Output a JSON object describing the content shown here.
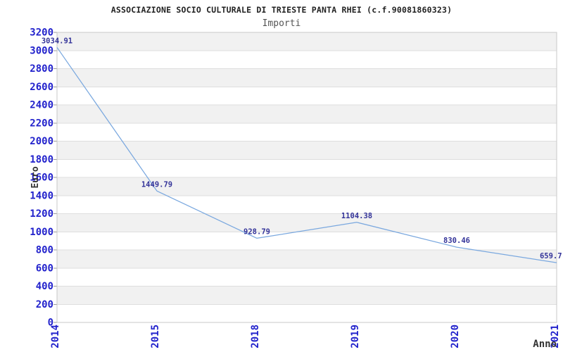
{
  "chart_data": {
    "type": "line",
    "title": "ASSOCIAZIONE SOCIO CULTURALE DI TRIESTE PANTA RHEI (c.f.90081860323)",
    "subtitle": "Importi",
    "xlabel": "Anno",
    "ylabel": "Euro",
    "categories": [
      "2014",
      "2015",
      "2018",
      "2019",
      "2020",
      "2021"
    ],
    "series": [
      {
        "name": "Importi",
        "values": [
          3034.91,
          1449.79,
          928.79,
          1104.38,
          830.46,
          659.7
        ]
      }
    ],
    "point_labels": [
      "3034.91",
      "1449.79",
      "928.79",
      "1104.38",
      "830.46",
      "659.7"
    ],
    "ylim": [
      0,
      3200
    ],
    "ytick_step": 200,
    "grid": "horizontal-bands-alternating",
    "legend": "none",
    "colors": {
      "line": "#7aa8df",
      "axis_tick_label": "#2222cc",
      "point_label": "#333399",
      "band": "#ffffff",
      "band_alt": "#f1f1f1",
      "gridline": "#dedede",
      "plot_border": "#c8c8c8",
      "tick": "#999999",
      "title": "#222222",
      "subtitle": "#555555",
      "axis_title": "#333333"
    }
  }
}
